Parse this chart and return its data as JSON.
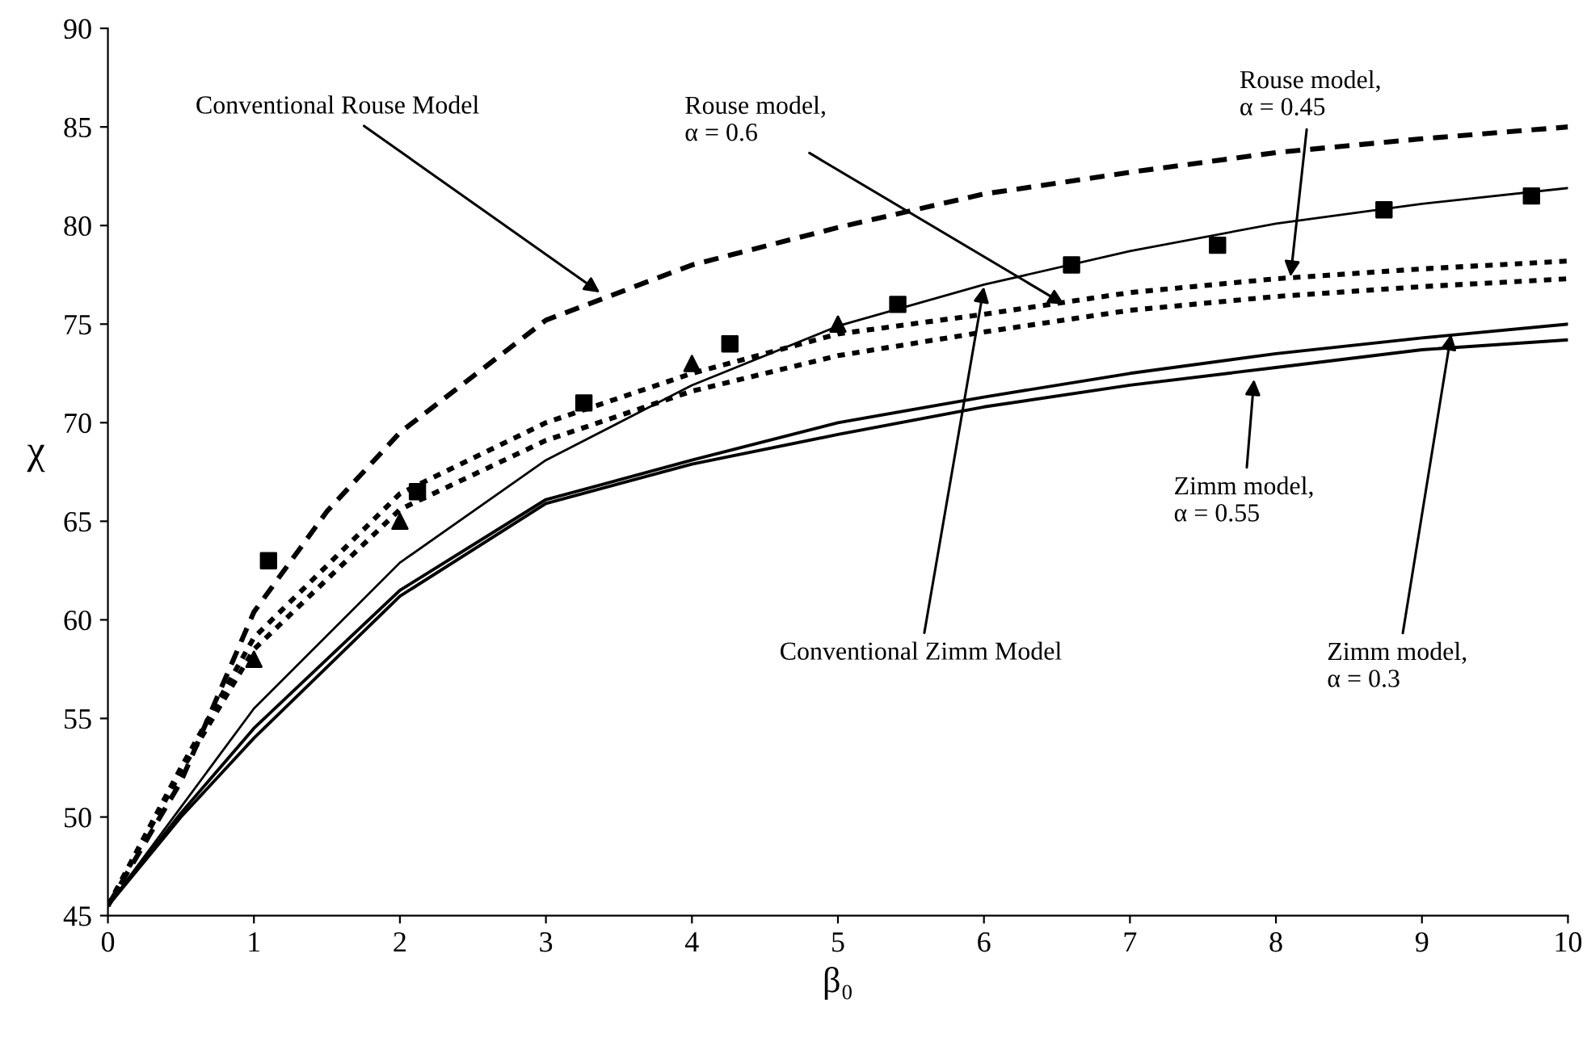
{
  "chart_data": {
    "type": "line",
    "xlabel": "β₀",
    "ylabel": "χ",
    "xlim": [
      0,
      10
    ],
    "ylim": [
      45,
      90
    ],
    "xticks": [
      0,
      1,
      2,
      3,
      4,
      5,
      6,
      7,
      8,
      9,
      10
    ],
    "yticks": [
      45,
      50,
      55,
      60,
      65,
      70,
      75,
      80,
      85,
      90
    ],
    "grid": false,
    "legend": false,
    "series": [
      {
        "line_style": "dashed",
        "color": "#000000",
        "x": [
          0,
          0.5,
          1,
          1.5,
          2,
          3,
          4,
          5,
          6,
          7,
          8,
          9,
          10
        ],
        "values": [
          45.5,
          51.8,
          60.4,
          65.5,
          69.5,
          75.2,
          78.0,
          79.9,
          81.6,
          82.7,
          83.7,
          84.4,
          85.0
        ]
      },
      {
        "type": "line",
        "line_style": "solid",
        "color": "#000000",
        "x": [
          0,
          0.5,
          1,
          2,
          3,
          4,
          5,
          6,
          7,
          8,
          9,
          10
        ],
        "values": [
          45.5,
          50.5,
          55.5,
          62.9,
          68.1,
          71.9,
          74.9,
          77.0,
          78.7,
          80.1,
          81.1,
          81.9
        ]
      },
      {
        "type": "line",
        "line_style": "solid",
        "color": "#000000",
        "x": [
          0,
          0.5,
          1,
          2,
          3,
          4,
          5,
          6,
          7,
          8,
          9,
          10
        ],
        "values": [
          45.5,
          50.2,
          54.5,
          61.5,
          66.1,
          68.1,
          70.0,
          71.3,
          72.5,
          73.5,
          74.3,
          75.0
        ]
      },
      {
        "type": "line",
        "line_style": "solid",
        "color": "#000000",
        "x": [
          0,
          0.5,
          1,
          2,
          3,
          4,
          5,
          6,
          7,
          8,
          9,
          10
        ],
        "values": [
          45.5,
          50.0,
          54.0,
          61.2,
          65.9,
          67.9,
          69.4,
          70.8,
          71.9,
          72.8,
          73.7,
          74.2
        ]
      },
      {
        "type": "line",
        "line_style": "dotted",
        "color": "#000000",
        "x": [
          0,
          0.5,
          1,
          2,
          3,
          4,
          5,
          6,
          7,
          8,
          9,
          10
        ],
        "values": [
          45.5,
          52.5,
          59.1,
          66.4,
          70.0,
          72.5,
          74.5,
          75.5,
          76.6,
          77.3,
          77.8,
          78.2
        ]
      },
      {
        "type": "line",
        "line_style": "dotted",
        "color": "#000000",
        "x": [
          0,
          0.5,
          1,
          2,
          3,
          4,
          5,
          6,
          7,
          8,
          9,
          10
        ],
        "values": [
          45.5,
          52.3,
          58.5,
          65.6,
          69.1,
          71.6,
          73.4,
          74.6,
          75.7,
          76.4,
          76.9,
          77.3
        ]
      },
      {
        "type": "scatter",
        "marker": "square",
        "color": "#000000",
        "x": [
          1.1,
          2.12,
          3.26,
          4.26,
          5.41,
          6.6,
          7.6,
          8.74,
          9.75
        ],
        "values": [
          63,
          66.5,
          71,
          74,
          76,
          78,
          79,
          80.8,
          81.5
        ]
      },
      {
        "type": "scatter",
        "marker": "triangle",
        "color": "#000000",
        "x": [
          1,
          2,
          4,
          5
        ],
        "values": [
          58,
          65,
          73,
          75
        ]
      }
    ],
    "annotations": [
      {
        "text": "Conventional Rouse Model",
        "x": 3.37,
        "y": 76.6
      },
      {
        "text": "Rouse model,\nα = 0.6",
        "x": 6.55,
        "y": 76.0
      },
      {
        "text": "Rouse model,\nα = 0.45",
        "x": 8.1,
        "y": 77.4
      },
      {
        "text": "Conventional Zimm Model",
        "x": 6.0,
        "y": 76.9
      },
      {
        "text": "Zimm model,\nα = 0.55",
        "x": 7.85,
        "y": 72.2
      },
      {
        "text": "Zimm model,\nα = 0.3",
        "x": 9.2,
        "y": 74.5
      }
    ]
  }
}
